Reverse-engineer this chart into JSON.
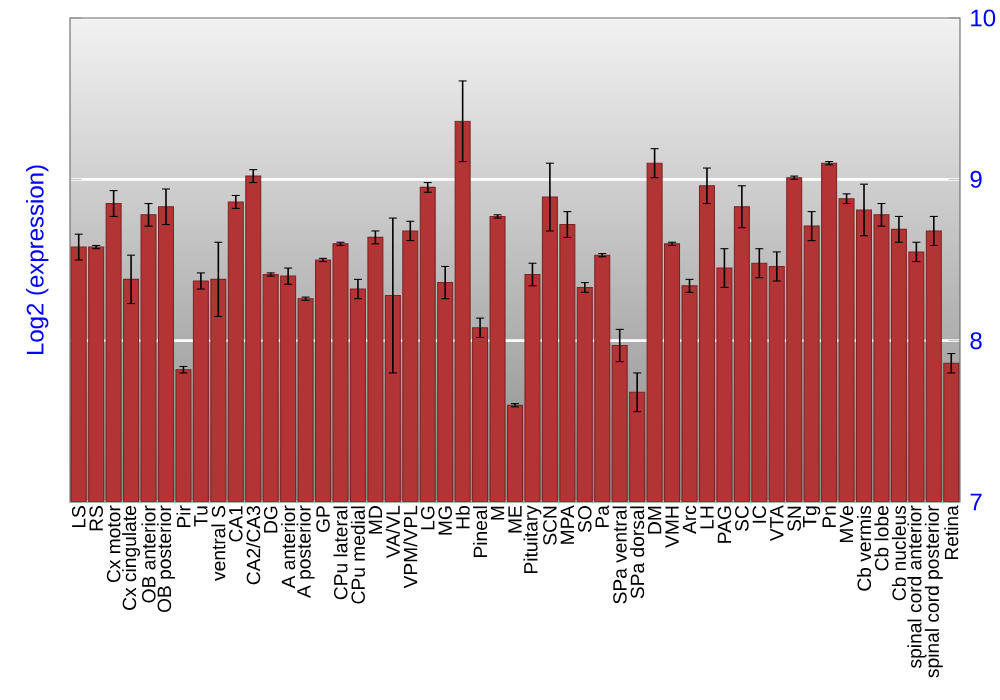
{
  "chart_data": {
    "type": "bar",
    "ylabel": "Log2 (expression)",
    "categories": [
      "LS",
      "RS",
      "Cx motor",
      "Cx cingulate",
      "OB anterior",
      "OB posterior",
      "Pir",
      "Tu",
      "ventral S",
      "CA1",
      "CA2/CA3",
      "DG",
      "A anterior",
      "A posterior",
      "GP",
      "CPu lateral",
      "CPu medial",
      "MD",
      "VA/VL",
      "VPM/VPL",
      "LG",
      "MG",
      "Hb",
      "Pineal",
      "M",
      "ME",
      "Pituitary",
      "SCN",
      "MPA",
      "SO",
      "Pa",
      "SPa ventral",
      "SPa dorsal",
      "DM",
      "VMH",
      "Arc",
      "LH",
      "PAG",
      "SC",
      "IC",
      "VTA",
      "SN",
      "Tg",
      "Pn",
      "MVe",
      "Cb vermis",
      "Cb lobe",
      "Cb nucleus",
      "spinal cord anterior",
      "spinal cord posterior",
      "Retina"
    ],
    "values": [
      8.58,
      8.58,
      8.85,
      8.38,
      8.78,
      8.83,
      7.82,
      8.37,
      8.38,
      8.86,
      9.02,
      8.41,
      8.4,
      8.26,
      8.5,
      8.6,
      8.32,
      8.64,
      8.28,
      8.68,
      8.95,
      8.36,
      9.36,
      8.08,
      8.77,
      7.6,
      8.41,
      8.89,
      8.72,
      8.33,
      8.53,
      7.97,
      7.68,
      9.1,
      8.6,
      8.34,
      8.96,
      8.45,
      8.83,
      8.48,
      8.46,
      9.01,
      8.71,
      9.1,
      8.88,
      8.81,
      8.78,
      8.69,
      8.55,
      8.68,
      7.86
    ],
    "errors": [
      0.08,
      0.01,
      0.08,
      0.15,
      0.07,
      0.11,
      0.02,
      0.05,
      0.23,
      0.04,
      0.04,
      0.01,
      0.05,
      0.01,
      0.01,
      0.01,
      0.06,
      0.04,
      0.48,
      0.06,
      0.03,
      0.1,
      0.25,
      0.06,
      0.01,
      0.01,
      0.07,
      0.21,
      0.08,
      0.03,
      0.01,
      0.1,
      0.12,
      0.09,
      0.01,
      0.04,
      0.11,
      0.12,
      0.13,
      0.09,
      0.09,
      0.01,
      0.09,
      0.01,
      0.03,
      0.16,
      0.07,
      0.08,
      0.06,
      0.09,
      0.06
    ],
    "color": "#b23434",
    "ylim": [
      7,
      10
    ],
    "yticks": [
      7,
      8,
      9,
      10
    ],
    "grid": "y"
  }
}
